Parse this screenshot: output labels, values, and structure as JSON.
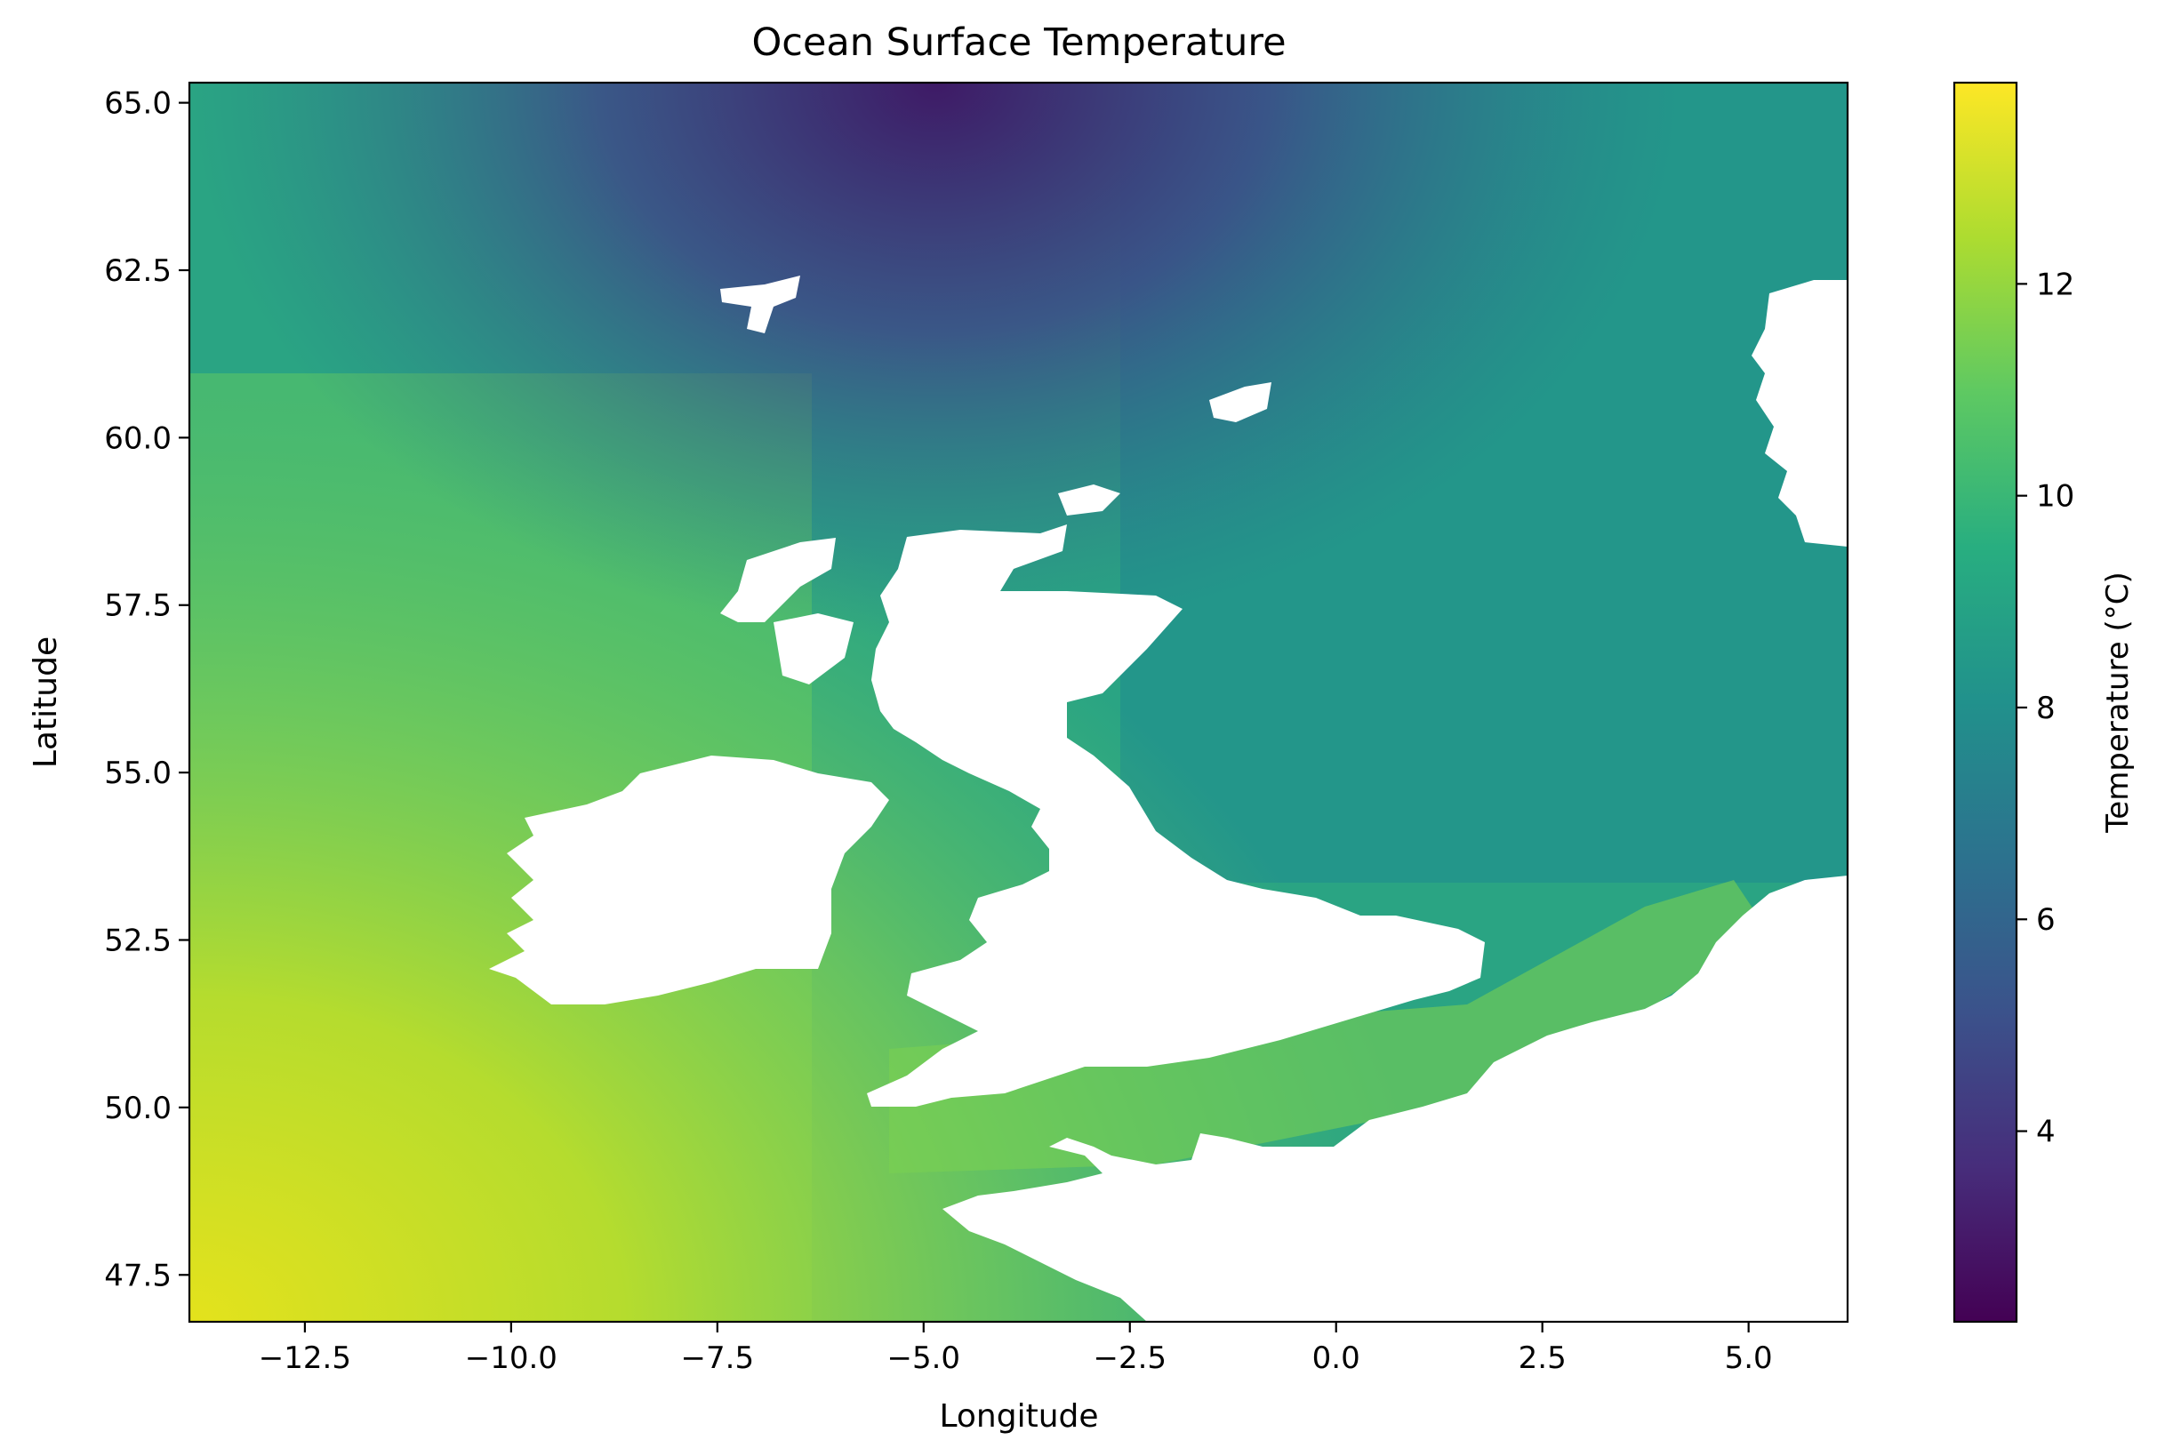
{
  "chart_data": {
    "type": "heatmap",
    "title": "Ocean Surface Temperature",
    "xlabel": "Longitude",
    "ylabel": "Latitude",
    "xlim": [
      -13.9,
      6.2
    ],
    "ylim": [
      46.8,
      65.3
    ],
    "xticks": [
      -12.5,
      -10.0,
      -7.5,
      -5.0,
      -2.5,
      0.0,
      2.5,
      5.0
    ],
    "xtick_labels": [
      "−12.5",
      "−10.0",
      "−7.5",
      "−5.0",
      "−2.5",
      "0.0",
      "2.5",
      "5.0"
    ],
    "yticks": [
      47.5,
      50.0,
      52.5,
      55.0,
      57.5,
      60.0,
      62.5,
      65.0
    ],
    "ytick_labels": [
      "47.5",
      "50.0",
      "52.5",
      "55.0",
      "57.5",
      "60.0",
      "62.5",
      "65.0"
    ],
    "colorbar": {
      "label": "Temperature (°C)",
      "colormap": "viridis",
      "range": [
        2.2,
        13.9
      ],
      "ticks": [
        4,
        6,
        8,
        10,
        12
      ],
      "tick_labels": [
        "4",
        "6",
        "8",
        "10",
        "12"
      ]
    },
    "grid": false,
    "masked_regions": "land (white)"
  }
}
